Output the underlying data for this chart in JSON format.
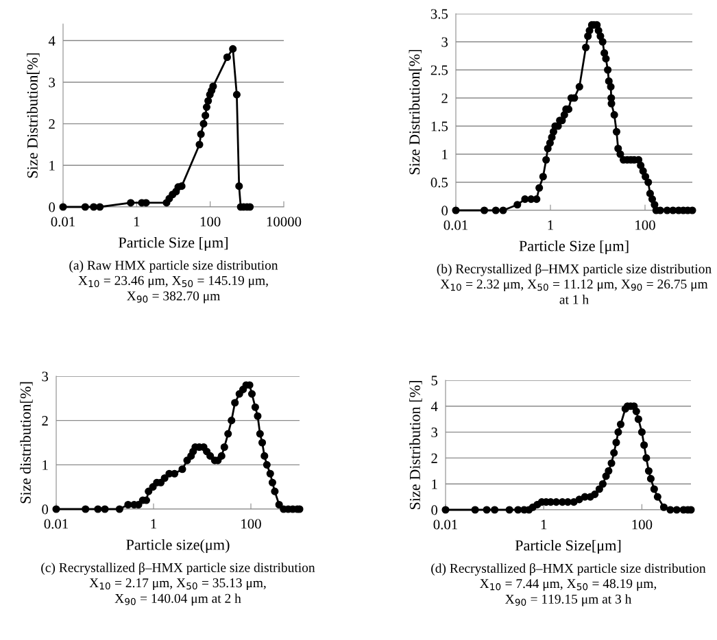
{
  "chart_data": [
    {
      "type": "line",
      "xlabel": "Particle Size [μm]",
      "ylabel": "Size Distribution[%]",
      "log": "x",
      "grid": "y",
      "marker": "circle",
      "line_style": "solid",
      "xlim": [
        0.01,
        10000
      ],
      "xticks": [
        0.01,
        1,
        100,
        10000
      ],
      "ylim": [
        0,
        4.4
      ],
      "yticks": [
        0,
        1,
        2,
        3,
        4
      ],
      "annotations": [
        "(a) Raw HMX particle size distribution\nX$_{10}$ = 23.46 μm, X$_{50}$ = 145.19 μm,\nX$_{90}$ = 382.70 μm"
      ],
      "series": [
        {
          "color": "#000000",
          "x": [
            0.01,
            0.04,
            0.068,
            0.1,
            0.69,
            1.38,
            1.8,
            6.5,
            7.7,
            9.5,
            11.8,
            13.5,
            16.8,
            51,
            56,
            66,
            74,
            80,
            88,
            98,
            109,
            120,
            289,
            413,
            527,
            609,
            675,
            810,
            1000,
            1200
          ],
          "values": [
            0,
            0,
            0,
            0,
            0.1,
            0.1,
            0.1,
            0.1,
            0.2,
            0.3,
            0.37,
            0.48,
            0.5,
            1.5,
            1.75,
            2.0,
            2.2,
            2.4,
            2.55,
            2.7,
            2.8,
            2.9,
            3.6,
            3.8,
            2.7,
            0.5,
            0,
            0,
            0,
            0
          ]
        }
      ]
    },
    {
      "type": "line",
      "xlabel": "Particle Size [μm]",
      "ylabel": "Size Distribution[%]",
      "log": "x",
      "grid": "y",
      "marker": "circle",
      "line_style": "solid",
      "xlim": [
        0.01,
        1000
      ],
      "xticks": [
        0.01,
        1,
        100
      ],
      "ylim": [
        0,
        3.5
      ],
      "yticks": [
        0,
        0.5,
        1,
        1.5,
        2,
        2.5,
        3,
        3.5
      ],
      "annotations": [
        "(b) Recrystallized β–HMX particle size distribution\nX$_{10}$ = 2.32 μm, X$_{50}$ = 11.12 μm, X$_{90}$ = 26.75 μm\nat 1 h"
      ],
      "series": [
        {
          "color": "#000000",
          "x": [
            0.01,
            0.04,
            0.07,
            0.1,
            0.2,
            0.29,
            0.39,
            0.51,
            0.58,
            0.7,
            0.81,
            0.88,
            0.98,
            1.07,
            1.16,
            1.26,
            1.45,
            1.58,
            1.76,
            1.97,
            2.14,
            2.42,
            2.76,
            3.2,
            4.1,
            5.6,
            6.2,
            6.7,
            7.5,
            8.3,
            9.6,
            10.4,
            11.4,
            12.7,
            13.8,
            14.9,
            16.3,
            17.2,
            18.9,
            19.3,
            19.5,
            22.4,
            25,
            27,
            30,
            35,
            42,
            50,
            59,
            73,
            81,
            91,
            102,
            117,
            128,
            142,
            159,
            172,
            210,
            294,
            390,
            513,
            645,
            800,
            1000
          ],
          "values": [
            0,
            0,
            0,
            0,
            0.1,
            0.2,
            0.2,
            0.2,
            0.4,
            0.6,
            0.9,
            1.1,
            1.2,
            1.3,
            1.4,
            1.5,
            1.5,
            1.6,
            1.6,
            1.7,
            1.8,
            1.8,
            2.0,
            2.0,
            2.2,
            2.9,
            3.1,
            3.2,
            3.3,
            3.3,
            3.3,
            3.2,
            3.1,
            3.0,
            2.8,
            2.7,
            2.5,
            2.3,
            2.2,
            2.0,
            1.9,
            1.7,
            1.4,
            1.1,
            1.0,
            0.9,
            0.9,
            0.9,
            0.9,
            0.9,
            0.8,
            0.7,
            0.6,
            0.5,
            0.3,
            0.2,
            0.1,
            0,
            0,
            0,
            0,
            0,
            0,
            0,
            0
          ]
        }
      ]
    },
    {
      "type": "line",
      "xlabel": "Particle size(μm)",
      "ylabel": "Size distribution[%]",
      "log": "x",
      "grid": "y",
      "marker": "circle",
      "line_style": "solid",
      "xlim": [
        0.01,
        1000
      ],
      "xticks": [
        0.01,
        1,
        100
      ],
      "ylim": [
        0,
        3
      ],
      "yticks": [
        0,
        1,
        2,
        3
      ],
      "annotations": [
        "(c) Recrystallized β–HMX particle size distribution\nX$_{10}$ = 2.17 μm, X$_{50}$ = 35.13 μm,\nX$_{90}$ = 140.04 μm at 2 h"
      ],
      "series": [
        {
          "color": "#000000",
          "x": [
            0.01,
            0.04,
            0.072,
            0.1,
            0.2,
            0.3,
            0.4,
            0.49,
            0.6,
            0.71,
            0.79,
            0.97,
            1.17,
            1.41,
            1.69,
            2.1,
            2.7,
            3.9,
            4.9,
            5.9,
            6.5,
            7.2,
            8.7,
            10.7,
            12.4,
            14.6,
            18.1,
            21,
            25,
            28.5,
            34,
            40,
            47,
            58,
            69,
            80,
            94,
            105,
            123,
            138,
            154,
            171,
            190,
            213,
            250,
            277,
            310,
            380,
            470,
            585,
            725,
            900,
            1000
          ],
          "values": [
            0,
            0,
            0,
            0,
            0,
            0.1,
            0.1,
            0.1,
            0.2,
            0.2,
            0.4,
            0.5,
            0.6,
            0.6,
            0.7,
            0.8,
            0.8,
            0.9,
            1.1,
            1.2,
            1.3,
            1.4,
            1.4,
            1.4,
            1.3,
            1.2,
            1.1,
            1.1,
            1.2,
            1.4,
            1.7,
            2.0,
            2.4,
            2.6,
            2.7,
            2.8,
            2.8,
            2.6,
            2.3,
            2.1,
            1.7,
            1.5,
            1.2,
            1.0,
            0.8,
            0.6,
            0.4,
            0.1,
            0,
            0,
            0,
            0,
            0
          ]
        }
      ]
    },
    {
      "type": "line",
      "xlabel": "Particle Size[μm]",
      "ylabel": "Size Distribution [%]",
      "log": "x",
      "grid": "y",
      "marker": "circle",
      "line_style": "solid",
      "xlim": [
        0.01,
        1000
      ],
      "xticks": [
        0.01,
        1,
        100
      ],
      "ylim": [
        0,
        5
      ],
      "yticks": [
        0,
        1,
        2,
        3,
        4,
        5
      ],
      "annotations": [
        "(d) Recrystallized β–HMX particle size distribution\nX$_{10}$ = 7.44 μm, X$_{50}$ = 48.19 μm,\nX$_{90}$ = 119.15 μm at 3 h"
      ],
      "series": [
        {
          "color": "#000000",
          "x": [
            0.01,
            0.04,
            0.069,
            0.1,
            0.2,
            0.3,
            0.4,
            0.5,
            0.6,
            0.74,
            0.91,
            1.12,
            1.39,
            1.8,
            2.4,
            3.1,
            4.1,
            5.3,
            6.9,
            8.9,
            11,
            13.6,
            16,
            18.6,
            21,
            24,
            27,
            30,
            33,
            37,
            46,
            51,
            59,
            69,
            77,
            85,
            100,
            111,
            123,
            138,
            152,
            178,
            209,
            280,
            380,
            513,
            705,
            865,
            1000
          ],
          "values": [
            0,
            0,
            0,
            0,
            0,
            0,
            0,
            0,
            0.1,
            0.2,
            0.3,
            0.3,
            0.3,
            0.3,
            0.3,
            0.3,
            0.3,
            0.4,
            0.5,
            0.5,
            0.6,
            0.8,
            1.0,
            1.3,
            1.5,
            1.8,
            2.2,
            2.6,
            3.0,
            3.3,
            3.9,
            4.0,
            4.0,
            4.0,
            3.8,
            3.5,
            3.0,
            2.5,
            2.0,
            1.5,
            1.2,
            0.8,
            0.5,
            0.1,
            0,
            0,
            0,
            0,
            0
          ]
        }
      ]
    }
  ]
}
